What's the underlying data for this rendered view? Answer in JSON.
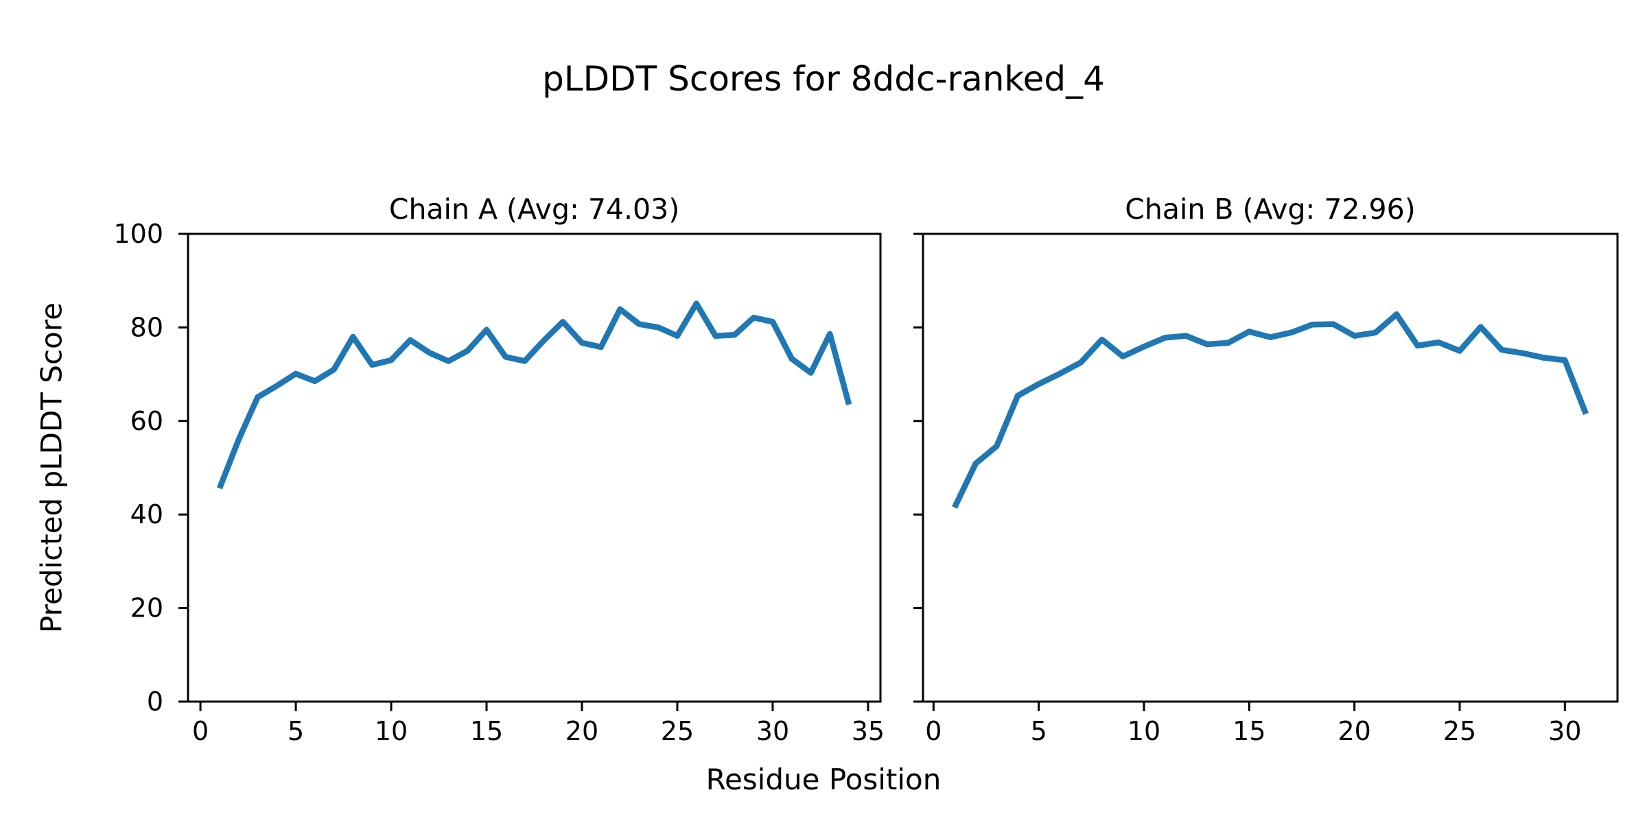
{
  "figure": {
    "title": "pLDDT Scores for 8ddc-ranked_4",
    "xlabel": "Residue Position",
    "ylabel": "Predicted pLDDT Score"
  },
  "style": {
    "line_color": "#1f77b4",
    "axis_color": "#000000",
    "background": "#ffffff"
  },
  "chart_data": [
    {
      "type": "line",
      "title": "Chain A (Avg: 74.03)",
      "chain": "A",
      "avg": 74.03,
      "x": [
        1,
        2,
        3,
        4,
        5,
        6,
        7,
        8,
        9,
        10,
        11,
        12,
        13,
        14,
        15,
        16,
        17,
        18,
        19,
        20,
        21,
        22,
        23,
        24,
        25,
        26,
        27,
        28,
        29,
        30,
        31,
        32,
        33,
        34
      ],
      "values": [
        45.6,
        56.0,
        65.1,
        67.5,
        70.1,
        68.5,
        71.0,
        78.0,
        72.0,
        73.0,
        77.3,
        74.6,
        72.8,
        75.0,
        79.5,
        73.7,
        72.8,
        77.2,
        81.2,
        76.7,
        75.8,
        83.9,
        80.7,
        80.0,
        78.2,
        85.1,
        78.2,
        78.4,
        82.1,
        81.2,
        73.3,
        70.3,
        78.6,
        63.5
      ],
      "xticks": [
        0,
        5,
        10,
        15,
        20,
        25,
        30,
        35
      ],
      "yticks": [
        0,
        20,
        40,
        60,
        80,
        100
      ],
      "show_ytick_labels": true,
      "xlim": [
        -0.65,
        35.65
      ],
      "ylim": [
        0,
        100
      ],
      "grid": false,
      "legend": "none"
    },
    {
      "type": "line",
      "title": "Chain B (Avg: 72.96)",
      "chain": "B",
      "avg": 72.96,
      "x": [
        1,
        2,
        3,
        4,
        5,
        6,
        7,
        8,
        9,
        10,
        11,
        12,
        13,
        14,
        15,
        16,
        17,
        18,
        19,
        20,
        21,
        22,
        23,
        24,
        25,
        26,
        27,
        28,
        29,
        30,
        31
      ],
      "values": [
        41.5,
        50.9,
        54.6,
        65.4,
        67.9,
        70.1,
        72.5,
        77.4,
        73.8,
        75.9,
        77.8,
        78.2,
        76.4,
        76.7,
        79.1,
        77.9,
        78.9,
        80.6,
        80.7,
        78.2,
        78.9,
        82.8,
        76.1,
        76.8,
        75.0,
        80.1,
        75.2,
        74.5,
        73.5,
        73.0,
        61.5
      ],
      "xticks": [
        0,
        5,
        10,
        15,
        20,
        25,
        30
      ],
      "yticks": [
        0,
        20,
        40,
        60,
        80,
        100
      ],
      "show_ytick_labels": false,
      "xlim": [
        -0.5,
        32.5
      ],
      "ylim": [
        0,
        100
      ],
      "grid": false,
      "legend": "none"
    }
  ]
}
